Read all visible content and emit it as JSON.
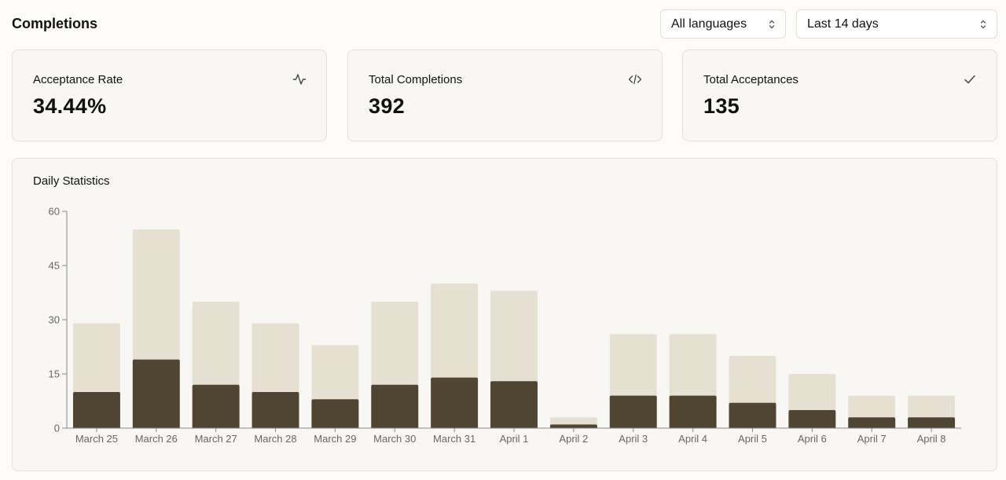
{
  "header": {
    "title": "Completions",
    "language_select": "All languages",
    "range_select": "Last 14 days"
  },
  "cards": [
    {
      "label": "Acceptance Rate",
      "value": "34.44%",
      "icon": "activity-icon"
    },
    {
      "label": "Total Completions",
      "value": "392",
      "icon": "code-icon"
    },
    {
      "label": "Total Acceptances",
      "value": "135",
      "icon": "check-icon"
    }
  ],
  "chart_title": "Daily Statistics",
  "colors": {
    "completions": "#e6e0d3",
    "acceptances": "#4f4530"
  },
  "chart_data": {
    "type": "bar",
    "title": "Daily Statistics",
    "categories": [
      "March 25",
      "March 26",
      "March 27",
      "March 28",
      "March 29",
      "March 30",
      "March 31",
      "April 1",
      "April 2",
      "April 3",
      "April 4",
      "April 5",
      "April 6",
      "April 7",
      "April 8"
    ],
    "series": [
      {
        "values": [
          29,
          55,
          35,
          29,
          23,
          35,
          40,
          38,
          3,
          26,
          26,
          20,
          15,
          9,
          9
        ]
      },
      {
        "values": [
          10,
          19,
          12,
          10,
          8,
          12,
          14,
          13,
          1,
          9,
          9,
          7,
          5,
          3,
          3
        ]
      }
    ],
    "yticks": [
      0,
      15,
      30,
      45,
      60
    ],
    "ylim": [
      0,
      60
    ],
    "overlap": true,
    "grid": false
  }
}
